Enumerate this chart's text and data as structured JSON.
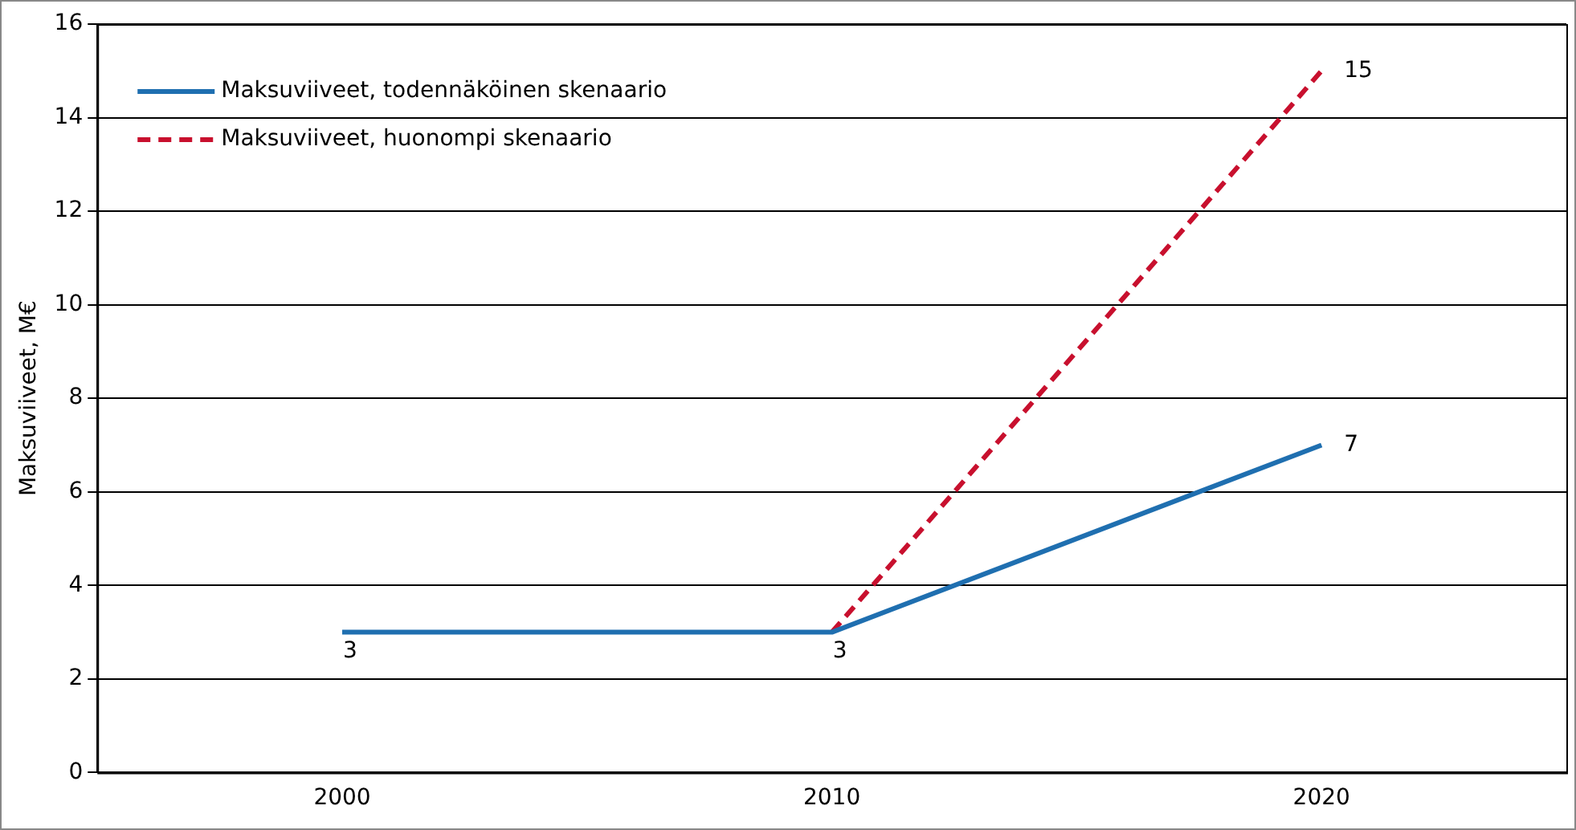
{
  "chart_data": {
    "type": "line",
    "ylabel": "Maksuviiveet, M€",
    "categories": [
      "2000",
      "2010",
      "2020"
    ],
    "series": [
      {
        "name": "Maksuviiveet, todennäköinen skenaario",
        "color": "#1f6fb0",
        "line_style": "solid",
        "values": [
          3,
          3,
          7
        ],
        "value_labels": [
          "3",
          "3",
          "7"
        ]
      },
      {
        "name": "Maksuviiveet, huonompi skenaario",
        "color": "#c8102e",
        "line_style": "dashed",
        "values": [
          null,
          3,
          15
        ],
        "value_labels": [
          null,
          null,
          "15"
        ]
      }
    ],
    "ylim": [
      0,
      16
    ],
    "yticks": [
      0,
      2,
      4,
      6,
      8,
      10,
      12,
      14,
      16
    ],
    "grid": "y",
    "legend": "top left",
    "marker": "none"
  }
}
